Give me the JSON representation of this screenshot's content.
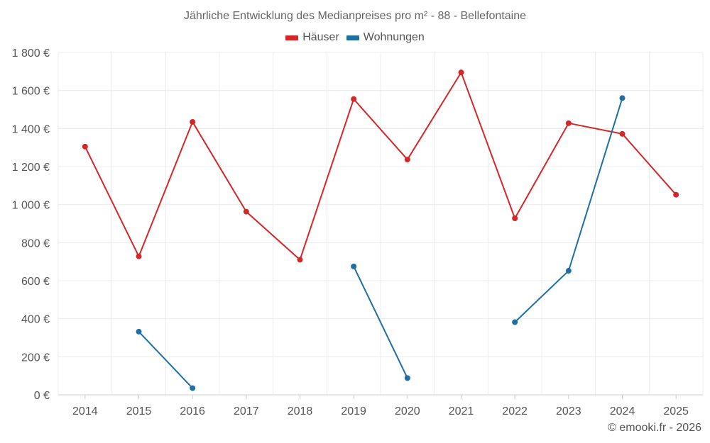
{
  "chart_data": {
    "type": "line",
    "title": "Jährliche Entwicklung des Medianpreises pro m² - 88 - Bellefontaine",
    "categories": [
      "2014",
      "2015",
      "2016",
      "2017",
      "2018",
      "2019",
      "2020",
      "2021",
      "2022",
      "2023",
      "2024",
      "2025"
    ],
    "ylim": [
      0,
      1800
    ],
    "yticks": [
      0,
      200,
      400,
      600,
      800,
      1000,
      1200,
      1400,
      1600,
      1800
    ],
    "ytick_labels": [
      "0 €",
      "200 €",
      "400 €",
      "600 €",
      "800 €",
      "1 000 €",
      "1 200 €",
      "1 400 €",
      "1 600 €",
      "1 800 €"
    ],
    "grid": true,
    "legend_position": "top-center",
    "series": [
      {
        "name": "Häuser",
        "color": "#d62728",
        "values": [
          1305,
          728,
          1435,
          963,
          710,
          1555,
          1237,
          1695,
          928,
          1428,
          1372,
          1052
        ]
      },
      {
        "name": "Wohnungen",
        "color": "#1f6fa3",
        "values": [
          null,
          332,
          35,
          null,
          null,
          675,
          88,
          null,
          382,
          652,
          1560,
          null
        ]
      }
    ]
  },
  "footer": {
    "copyright": "© emooki.fr - 2026"
  }
}
